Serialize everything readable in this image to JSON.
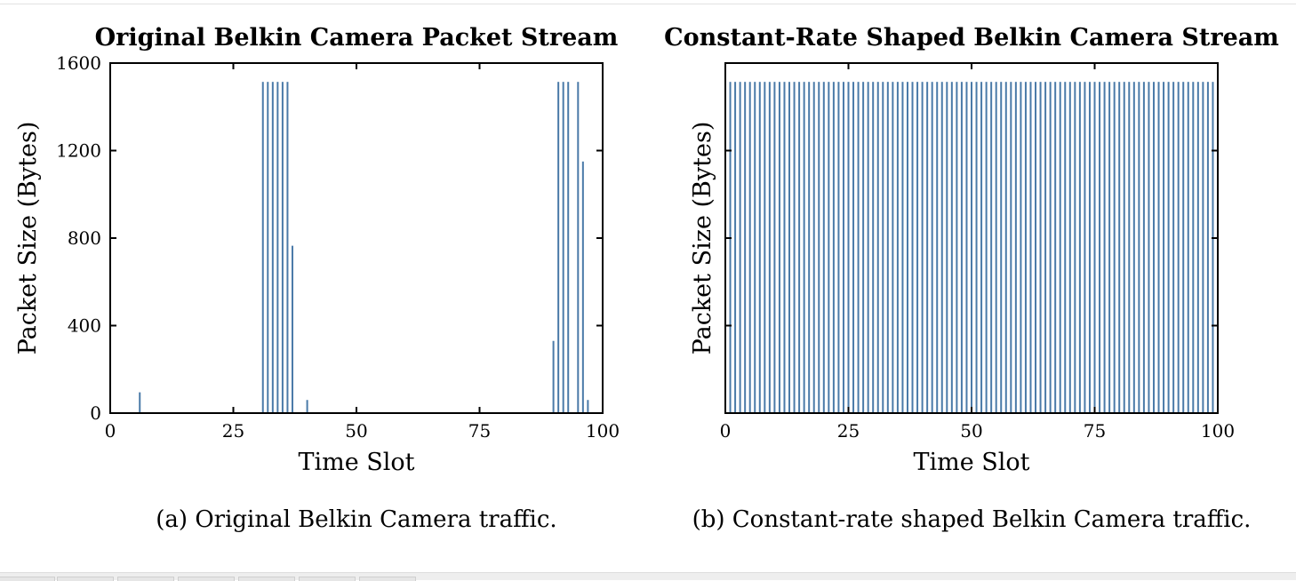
{
  "chart_data": [
    {
      "type": "bar",
      "title": "Original Belkin Camera Packet Stream",
      "xlabel": "Time Slot",
      "ylabel": "Packet Size (Bytes)",
      "xlim": [
        0,
        100
      ],
      "ylim": [
        0,
        1600
      ],
      "xticks": [
        0,
        25,
        50,
        75,
        100
      ],
      "yticks": [
        0,
        400,
        800,
        1200,
        1600
      ],
      "ytick_labels_shown": true,
      "bar_color": "#4a7aa8",
      "x": [
        6,
        31,
        32,
        33,
        34,
        35,
        36,
        37,
        40,
        90,
        91,
        92,
        93,
        95,
        96,
        97
      ],
      "values": [
        95,
        1514,
        1514,
        1514,
        1514,
        1514,
        1514,
        765,
        60,
        330,
        1514,
        1514,
        1514,
        1514,
        1150,
        60
      ]
    },
    {
      "type": "bar",
      "title": "Constant-Rate Shaped Belkin Camera Stream",
      "xlabel": "Time Slot",
      "ylabel": "Packet Size (Bytes)",
      "xlim": [
        0,
        100
      ],
      "ylim": [
        0,
        1600
      ],
      "xticks": [
        0,
        25,
        50,
        75,
        100
      ],
      "yticks": [
        0,
        400,
        800,
        1200,
        1600
      ],
      "ytick_labels_shown": false,
      "bar_color": "#4a7aa8",
      "x_start": 1,
      "x_end": 99,
      "constant_value": 1514
    }
  ],
  "captions": {
    "a": "(a) Original Belkin Camera traffic.",
    "b": "(b) Constant-rate shaped Belkin Camera traffic."
  }
}
